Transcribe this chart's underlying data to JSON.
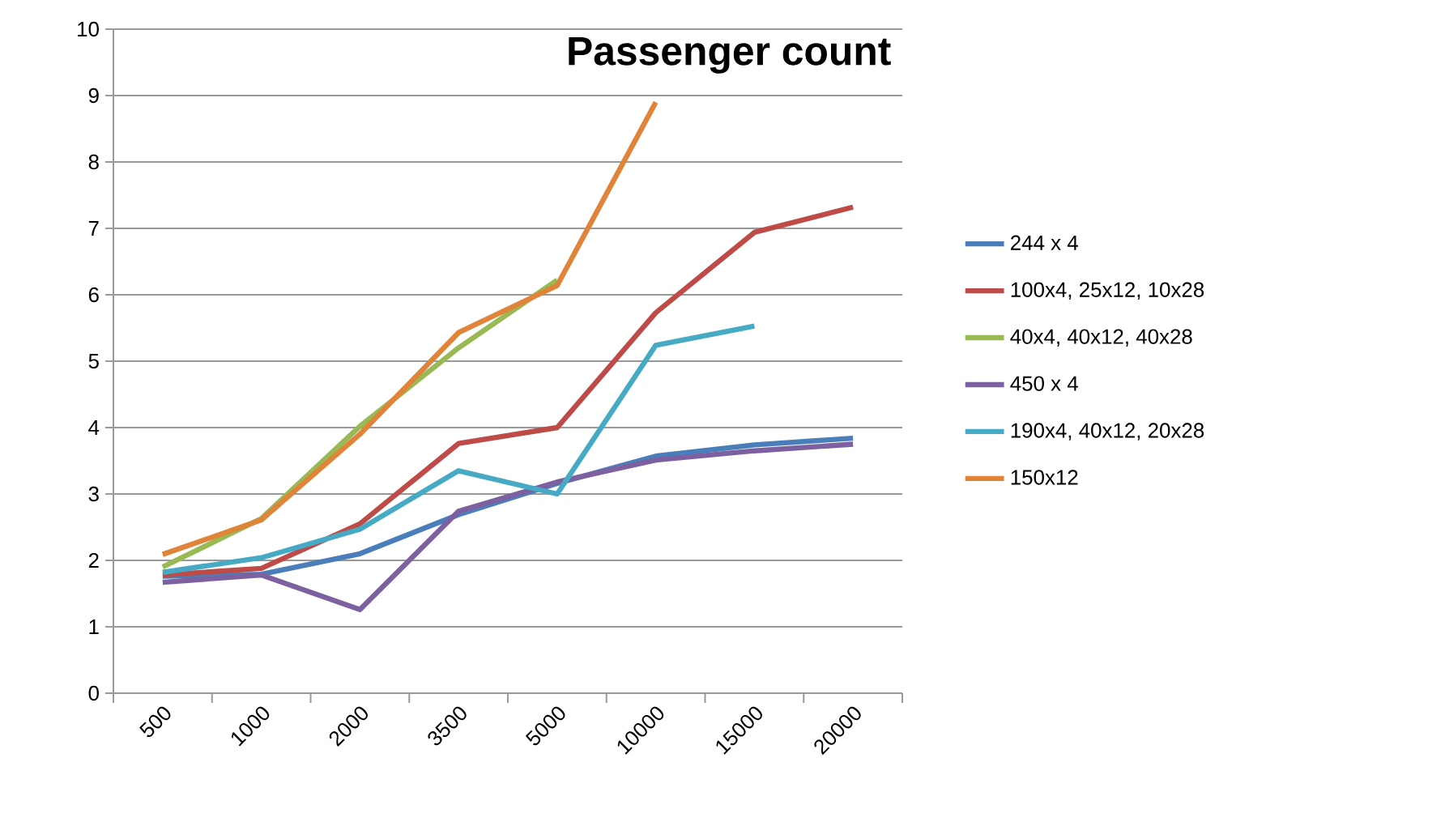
{
  "chart_data": {
    "type": "line",
    "title": "Passenger count",
    "categories": [
      "500",
      "1000",
      "2000",
      "3500",
      "5000",
      "10000",
      "15000",
      "20000"
    ],
    "series": [
      {
        "name": "244 x 4",
        "color": "#4a7ebb",
        "values": [
          1.76,
          1.79,
          2.1,
          2.69,
          3.16,
          3.57,
          3.74,
          3.84
        ]
      },
      {
        "name": "100x4, 25x12, 10x28",
        "color": "#be4b48",
        "values": [
          1.78,
          1.88,
          2.55,
          3.76,
          4.0,
          5.73,
          6.94,
          7.32
        ]
      },
      {
        "name": "40x4, 40x12, 40x28",
        "color": "#98b954",
        "values": [
          1.9,
          2.63,
          4.02,
          5.2,
          6.22,
          null,
          null,
          null
        ]
      },
      {
        "name": "450 x 4",
        "color": "#7d60a0",
        "values": [
          1.67,
          1.78,
          1.26,
          2.74,
          3.18,
          3.51,
          3.65,
          3.75
        ]
      },
      {
        "name": "190x4, 40x12, 20x28",
        "color": "#46aac5",
        "values": [
          1.82,
          2.04,
          2.47,
          3.35,
          3.0,
          5.24,
          5.53,
          null
        ]
      },
      {
        "name": "150x12",
        "color": "#e0843a",
        "values": [
          2.09,
          2.61,
          3.9,
          5.43,
          6.14,
          8.9,
          null,
          null
        ]
      }
    ],
    "ylim": [
      0,
      10
    ],
    "yticks": [
      0,
      1,
      2,
      3,
      4,
      5,
      6,
      7,
      8,
      9,
      10
    ],
    "grid": "y",
    "legend": "right",
    "marker": "none",
    "line_style": "solid"
  }
}
